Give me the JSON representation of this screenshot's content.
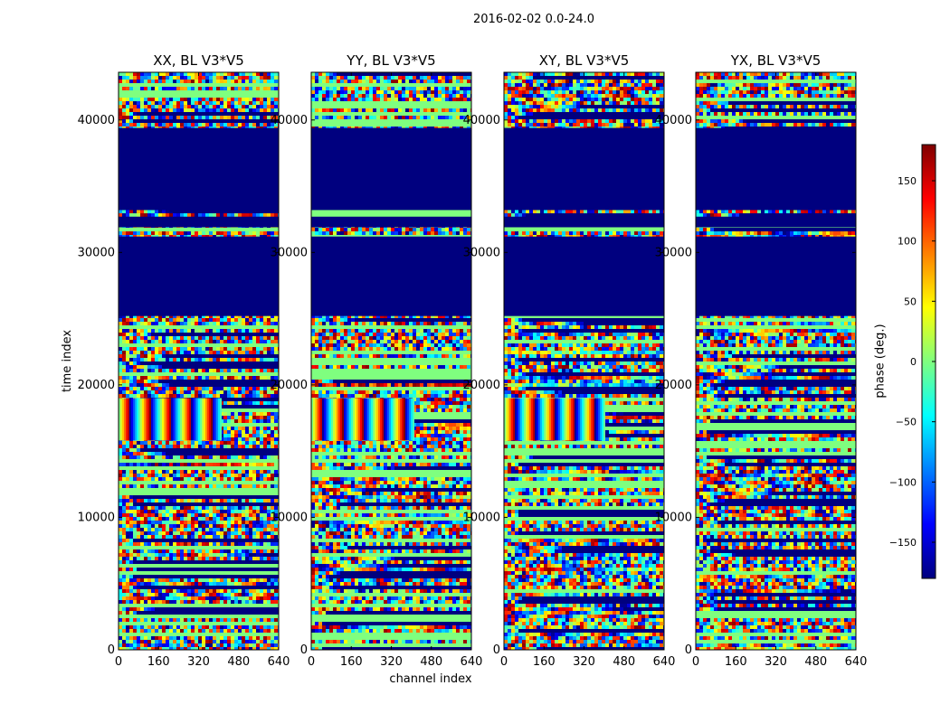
{
  "figure": {
    "suptitle": "2016-02-02 0.0-24.0",
    "xlabel": "channel index",
    "ylabel": "time index"
  },
  "colorbar": {
    "label": "phase (deg.)",
    "range": [
      -180,
      180
    ],
    "ticks": [
      150,
      100,
      50,
      0,
      -50,
      -100,
      -150
    ],
    "tick_labels": [
      "150",
      "100",
      "50",
      "0",
      "−50",
      "−100",
      "−150"
    ],
    "colormap": "jet",
    "colors": [
      "#00007f",
      "#0000ff",
      "#007fff",
      "#00ffff",
      "#7fff7f",
      "#ffff00",
      "#ff7f00",
      "#ff0000",
      "#7f0000"
    ]
  },
  "chart_data": {
    "type": "heatmap",
    "x_ticks": [
      0,
      160,
      320,
      480,
      640
    ],
    "x_tick_labels": [
      "0",
      "160",
      "320",
      "480",
      "640"
    ],
    "y_ticks": [
      0,
      10000,
      20000,
      30000,
      40000
    ],
    "y_tick_labels": [
      "0",
      "10000",
      "20000",
      "30000",
      "40000"
    ],
    "xlim": [
      0,
      640
    ],
    "ylim": [
      0,
      43600
    ],
    "panels": [
      {
        "title": "XX, BL V3*V5",
        "fringe_end": 410
      },
      {
        "title": "YY, BL V3*V5",
        "fringe_end": 410
      },
      {
        "title": "XY, BL V3*V5",
        "fringe_end": 400
      },
      {
        "title": "YX, BL V3*V5",
        "fringe_end": 0
      }
    ],
    "flagged_bands": [
      [
        25200,
        31200
      ],
      [
        31900,
        32700
      ],
      [
        33200,
        39400
      ]
    ],
    "flagged_value": -180
  }
}
